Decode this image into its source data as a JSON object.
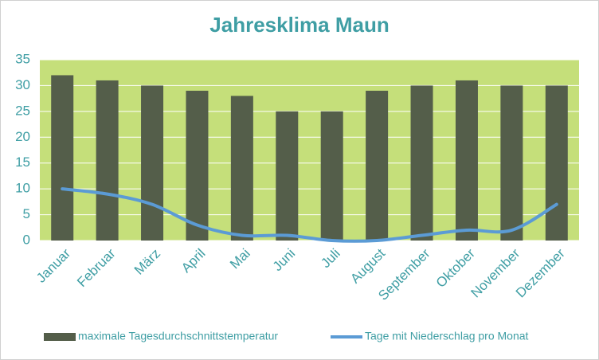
{
  "chart_data": {
    "type": "bar",
    "title": "Jahresklima Maun",
    "categories": [
      "Januar",
      "Februar",
      "März",
      "April",
      "Mai",
      "Juni",
      "Juli",
      "August",
      "September",
      "Oktober",
      "November",
      "Dezember"
    ],
    "series": [
      {
        "name": "maximale Tagesdurchschnittstemperatur",
        "type": "bar",
        "color": "#545e4a",
        "values": [
          32,
          31,
          30,
          29,
          28,
          25,
          25,
          29,
          30,
          31,
          30,
          30
        ]
      },
      {
        "name": "Tage mit Niederschlag pro Monat",
        "type": "line",
        "color": "#5b9bd5",
        "values": [
          10,
          9,
          7,
          3,
          1,
          1,
          0,
          0,
          1,
          2,
          2,
          7
        ]
      }
    ],
    "ylim": [
      0,
      35
    ],
    "yticks": [
      0,
      5,
      10,
      15,
      20,
      25,
      30,
      35
    ],
    "grid": true,
    "plot_background": "#c5df7a",
    "legend": "bottom"
  }
}
